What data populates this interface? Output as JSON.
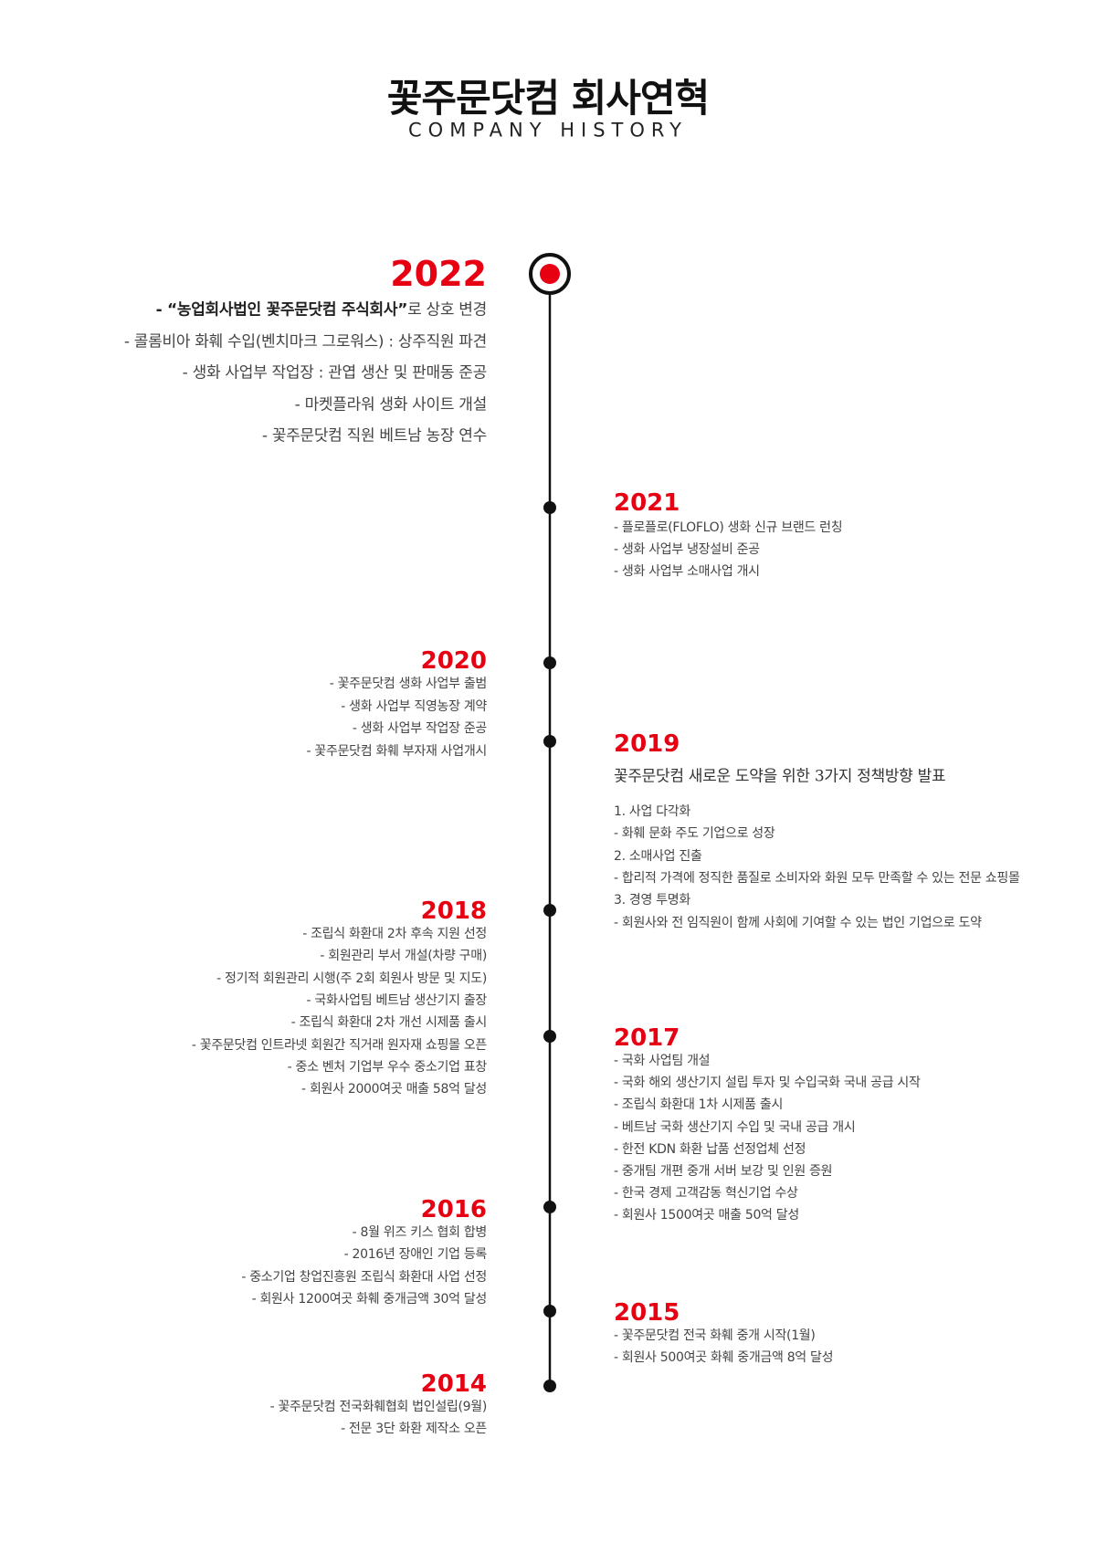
{
  "header": {
    "title": "꽃주문닷컴 회사연혁",
    "subtitle": "COMPANY HISTORY"
  },
  "timeline": [
    {
      "year": "2022",
      "items": [
        {
          "bold": "- “농업회사법인 꽃주문닷컴 주식회사”",
          "text": "로 상호 변경"
        },
        "- 콜롬비아 화훼 수입(벤치마크 그로워스) : 상주직원 파견",
        "- 생화 사업부 작업장 : 관엽 생산 및 판매동 준공",
        "- 마켓플라워 생화 사이트 개설",
        "- 꽃주문닷컴 직원 베트남 농장 연수"
      ]
    },
    {
      "year": "2021",
      "items": [
        "- 플로플로(FLOFLO) 생화 신규 브랜드 런칭",
        "- 생화 사업부 냉장설비 준공",
        "- 생화 사업부 소매사업 개시"
      ]
    },
    {
      "year": "2020",
      "items": [
        "- 꽃주문닷컴 생화 사업부 출범",
        "- 생화 사업부 직영농장 계약",
        "- 생화 사업부 작업장 준공",
        "- 꽃주문닷컴 화훼 부자재 사업개시"
      ]
    },
    {
      "year": "2019",
      "heading": "꽃주문닷컴 새로운 도약을 위한 3가지 정책방향 발표",
      "items": [
        "1. 사업 다각화",
        "- 화훼 문화 주도 기업으로 성장",
        "2. 소매사업 진출",
        "- 합리적 가격에 정직한 품질로 소비자와 화원 모두 만족할 수 있는 전문 쇼핑몰",
        "3. 경영 투명화",
        "- 회원사와 전 임직원이 함께 사회에 기여할 수 있는 법인 기업으로 도약"
      ]
    },
    {
      "year": "2018",
      "items": [
        "- 조립식 화환대 2차 후속 지원 선정",
        "- 회원관리 부서 개설(차량 구매)",
        "- 정기적 회원관리 시행(주 2회 회원사 방문 및 지도)",
        "- 국화사업팀 베트남 생산기지 출장",
        "- 조립식 화환대 2차 개선 시제품 출시",
        "- 꽃주문닷컴 인트라넷 회원간 직거래 원자재 쇼핑몰 오픈",
        "- 중소 벤처 기업부 우수 중소기업 표창",
        "- 회원사 2000여곳 매출 58억 달성"
      ]
    },
    {
      "year": "2017",
      "items": [
        "- 국화 사업팀 개설",
        "- 국화 해외 생산기지 설립 투자 및 수입국화 국내 공급 시작",
        "- 조립식 화환대 1차 시제품 출시",
        "- 베트남 국화 생산기지 수입 및 국내 공급 개시",
        "- 한전 KDN 화환 납품 선정업체 선정",
        "- 중개팀 개편 중개 서버 보강 및 인원 증원",
        "- 한국 경제 고객감동 혁신기업 수상",
        "- 회원사 1500여곳 매출 50억 달성"
      ]
    },
    {
      "year": "2016",
      "items": [
        "- 8월 위즈 키스 협회 합병",
        "- 2016년 장애인 기업 등록",
        "- 중소기업 창업진흥원 조립식 화환대 사업 선정",
        "- 회원사 1200여곳 화훼 중개금액 30억 달성"
      ]
    },
    {
      "year": "2015",
      "items": [
        "- 꽃주문닷컴 전국 화훼 중개 시작(1월)",
        "- 회원사 500여곳 화훼 중개금액 8억 달성"
      ]
    },
    {
      "year": "2014",
      "items": [
        "- 꽃주문닷컴 전국화훼협회 법인설립(9월)",
        "- 전문 3단 화환 제작소 오픈"
      ]
    }
  ]
}
